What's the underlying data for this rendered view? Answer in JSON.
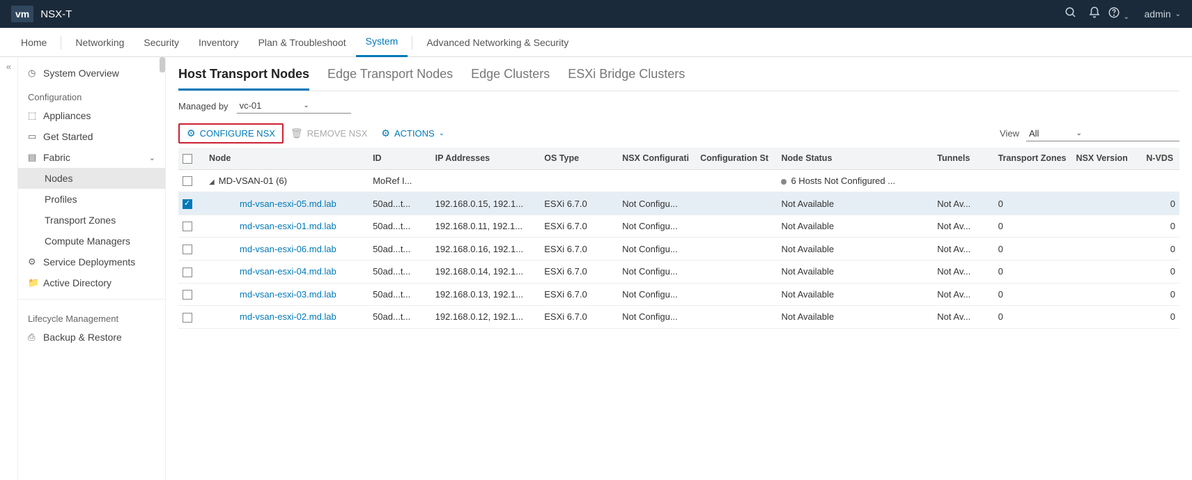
{
  "header": {
    "logo": "vm",
    "product": "NSX-T",
    "user": "admin"
  },
  "nav": {
    "items": [
      "Home",
      "Networking",
      "Security",
      "Inventory",
      "Plan & Troubleshoot",
      "System",
      "Advanced Networking & Security"
    ],
    "activeIndex": 5
  },
  "sidebar": {
    "overview": "System Overview",
    "section_config": "Configuration",
    "appliances": "Appliances",
    "get_started": "Get Started",
    "fabric": "Fabric",
    "fabric_children": [
      "Nodes",
      "Profiles",
      "Transport Zones",
      "Compute Managers"
    ],
    "fabric_selected": 0,
    "service_deployments": "Service Deployments",
    "active_directory": "Active Directory",
    "section_lifecycle": "Lifecycle Management",
    "backup_restore": "Backup & Restore"
  },
  "tabs": {
    "items": [
      "Host Transport Nodes",
      "Edge Transport Nodes",
      "Edge Clusters",
      "ESXi Bridge Clusters"
    ],
    "activeIndex": 0
  },
  "managed_by": {
    "label": "Managed by",
    "value": "vc-01"
  },
  "toolbar": {
    "configure": "CONFIGURE NSX",
    "remove": "REMOVE NSX",
    "actions": "ACTIONS",
    "view_label": "View",
    "view_value": "All"
  },
  "table": {
    "columns": [
      "",
      "Node",
      "ID",
      "IP Addresses",
      "OS Type",
      "NSX Configurati",
      "Configuration St",
      "Node Status",
      "Tunnels",
      "Transport Zones",
      "NSX Version",
      "N-VDS"
    ],
    "group": {
      "name": "MD-VSAN-01 (6)",
      "id": "MoRef I...",
      "status": "6 Hosts Not Configured ..."
    },
    "rows": [
      {
        "selected": true,
        "node": "md-vsan-esxi-05.md.lab",
        "id": "50ad...t...",
        "ip": "192.168.0.15, 192.1...",
        "os": "ESXi 6.7.0",
        "nsx": "Not Configu...",
        "nodeStatus": "Not Available",
        "tunnels": "Not Av...",
        "tz": "0",
        "nvds": "0"
      },
      {
        "selected": false,
        "node": "md-vsan-esxi-01.md.lab",
        "id": "50ad...t...",
        "ip": "192.168.0.11, 192.1...",
        "os": "ESXi 6.7.0",
        "nsx": "Not Configu...",
        "nodeStatus": "Not Available",
        "tunnels": "Not Av...",
        "tz": "0",
        "nvds": "0"
      },
      {
        "selected": false,
        "node": "md-vsan-esxi-06.md.lab",
        "id": "50ad...t...",
        "ip": "192.168.0.16, 192.1...",
        "os": "ESXi 6.7.0",
        "nsx": "Not Configu...",
        "nodeStatus": "Not Available",
        "tunnels": "Not Av...",
        "tz": "0",
        "nvds": "0"
      },
      {
        "selected": false,
        "node": "md-vsan-esxi-04.md.lab",
        "id": "50ad...t...",
        "ip": "192.168.0.14, 192.1...",
        "os": "ESXi 6.7.0",
        "nsx": "Not Configu...",
        "nodeStatus": "Not Available",
        "tunnels": "Not Av...",
        "tz": "0",
        "nvds": "0"
      },
      {
        "selected": false,
        "node": "md-vsan-esxi-03.md.lab",
        "id": "50ad...t...",
        "ip": "192.168.0.13, 192.1...",
        "os": "ESXi 6.7.0",
        "nsx": "Not Configu...",
        "nodeStatus": "Not Available",
        "tunnels": "Not Av...",
        "tz": "0",
        "nvds": "0"
      },
      {
        "selected": false,
        "node": "md-vsan-esxi-02.md.lab",
        "id": "50ad...t...",
        "ip": "192.168.0.12, 192.1...",
        "os": "ESXi 6.7.0",
        "nsx": "Not Configu...",
        "nodeStatus": "Not Available",
        "tunnels": "Not Av...",
        "tz": "0",
        "nvds": "0"
      }
    ]
  }
}
